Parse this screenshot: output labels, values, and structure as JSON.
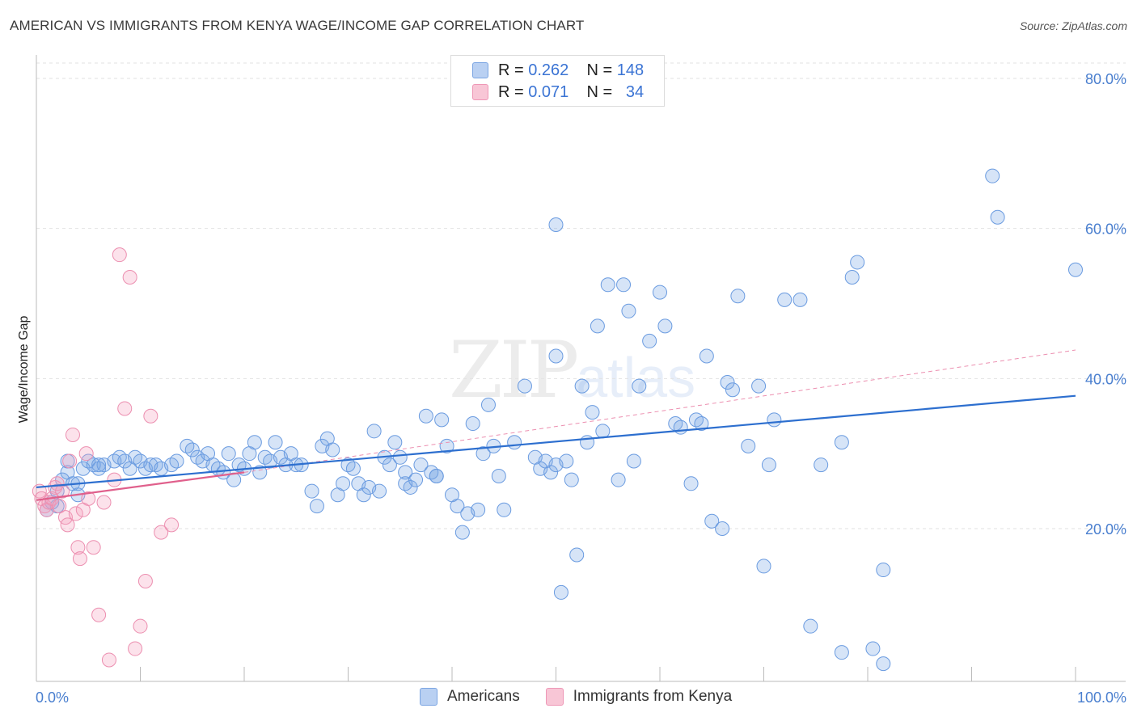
{
  "header": {
    "title": "AMERICAN VS IMMIGRANTS FROM KENYA WAGE/INCOME GAP CORRELATION CHART",
    "source": "Source: ZipAtlas.com"
  },
  "legend": {
    "rows": [
      {
        "r_label": "R =",
        "r_value": "0.262",
        "n_label": "N =",
        "n_value": "148"
      },
      {
        "r_label": "R =",
        "r_value": "0.071",
        "n_label": "N =",
        "n_value": "34"
      }
    ],
    "bottom": [
      "Americans",
      "Immigrants from Kenya"
    ]
  },
  "watermark": {
    "zip": "ZIP",
    "atlas": "atlas"
  },
  "colors": {
    "americans_fill": "rgba(120,165,230,0.30)",
    "americans_stroke": "#6a9be0",
    "americans_line": "#2d6fcf",
    "kenya_fill": "rgba(245,160,190,0.30)",
    "kenya_stroke": "#ec8fb0",
    "kenya_line": "#e0608c",
    "tick_text": "#4a7fcf",
    "grid": "#e2e2e2"
  },
  "chart_data": {
    "type": "scatter",
    "title": "AMERICAN VS IMMIGRANTS FROM KENYA WAGE/INCOME GAP CORRELATION CHART",
    "xlabel": "",
    "ylabel": "Wage/Income Gap",
    "xlim": [
      0,
      100
    ],
    "ylim": [
      0,
      85
    ],
    "x_tick_labels": [
      {
        "value": 0,
        "label": "0.0%"
      },
      {
        "value": 100,
        "label": "100.0%"
      }
    ],
    "x_minor_ticks": [
      0,
      10,
      20,
      30,
      40,
      50,
      60,
      70,
      80,
      90,
      100
    ],
    "y_ticks": [
      {
        "value": 20,
        "label": "20.0%"
      },
      {
        "value": 40,
        "label": "40.0%"
      },
      {
        "value": 60,
        "label": "60.0%"
      },
      {
        "value": 80,
        "label": "80.0%"
      }
    ],
    "grid": true,
    "legend_position": "top-center",
    "series": [
      {
        "name": "Americans",
        "R": 0.262,
        "N": 148,
        "trend": {
          "x": [
            0,
            100
          ],
          "y": [
            25.5,
            37.7
          ]
        },
        "points": [
          [
            1.0,
            22.5
          ],
          [
            1.5,
            23.5
          ],
          [
            2.0,
            25.0
          ],
          [
            2.5,
            26.5
          ],
          [
            3.0,
            27.5
          ],
          [
            3.5,
            26.0
          ],
          [
            4.0,
            24.5
          ],
          [
            4.5,
            28.0
          ],
          [
            5.0,
            29.0
          ],
          [
            5.5,
            28.5
          ],
          [
            6.0,
            28.0
          ],
          [
            6.5,
            28.5
          ],
          [
            7.5,
            29.0
          ],
          [
            8.0,
            29.5
          ],
          [
            8.5,
            29.0
          ],
          [
            9.0,
            28.0
          ],
          [
            9.5,
            29.5
          ],
          [
            10.0,
            29.0
          ],
          [
            10.5,
            28.0
          ],
          [
            11.0,
            28.5
          ],
          [
            11.5,
            28.5
          ],
          [
            12.0,
            28.0
          ],
          [
            13.0,
            28.5
          ],
          [
            13.5,
            29.0
          ],
          [
            14.5,
            31.0
          ],
          [
            15.0,
            30.5
          ],
          [
            15.5,
            29.5
          ],
          [
            16.0,
            29.0
          ],
          [
            16.5,
            30.0
          ],
          [
            17.0,
            28.5
          ],
          [
            17.5,
            28.0
          ],
          [
            18.0,
            27.5
          ],
          [
            18.5,
            30.0
          ],
          [
            19.0,
            26.5
          ],
          [
            19.5,
            28.5
          ],
          [
            20.0,
            28.0
          ],
          [
            20.5,
            30.0
          ],
          [
            21.0,
            31.5
          ],
          [
            21.5,
            27.5
          ],
          [
            22.0,
            29.5
          ],
          [
            22.5,
            29.0
          ],
          [
            23.0,
            31.5
          ],
          [
            23.5,
            29.5
          ],
          [
            24.0,
            28.5
          ],
          [
            24.5,
            30.0
          ],
          [
            25.0,
            28.5
          ],
          [
            25.5,
            28.5
          ],
          [
            26.5,
            25.0
          ],
          [
            27.0,
            23.0
          ],
          [
            27.5,
            31.0
          ],
          [
            28.0,
            32.0
          ],
          [
            28.5,
            30.5
          ],
          [
            29.0,
            24.5
          ],
          [
            29.5,
            26.0
          ],
          [
            30.0,
            28.5
          ],
          [
            30.5,
            28.0
          ],
          [
            31.0,
            26.0
          ],
          [
            31.5,
            24.5
          ],
          [
            32.0,
            25.5
          ],
          [
            32.5,
            33.0
          ],
          [
            33.0,
            25.0
          ],
          [
            33.5,
            29.5
          ],
          [
            34.0,
            28.5
          ],
          [
            34.5,
            31.5
          ],
          [
            35.0,
            29.5
          ],
          [
            35.5,
            27.5
          ],
          [
            35.5,
            26.0
          ],
          [
            36.0,
            25.5
          ],
          [
            36.5,
            26.5
          ],
          [
            37.0,
            28.5
          ],
          [
            37.5,
            35.0
          ],
          [
            38.0,
            27.5
          ],
          [
            38.5,
            27.0
          ],
          [
            38.5,
            27.0
          ],
          [
            39.0,
            34.5
          ],
          [
            39.5,
            31.0
          ],
          [
            40.0,
            24.5
          ],
          [
            40.5,
            23.0
          ],
          [
            41.0,
            19.5
          ],
          [
            41.5,
            22.0
          ],
          [
            42.0,
            34.0
          ],
          [
            42.5,
            22.5
          ],
          [
            43.0,
            30.0
          ],
          [
            43.5,
            36.5
          ],
          [
            44.0,
            31.0
          ],
          [
            44.5,
            27.0
          ],
          [
            45.0,
            22.5
          ],
          [
            46.0,
            31.5
          ],
          [
            47.0,
            39.0
          ],
          [
            48.0,
            29.5
          ],
          [
            48.5,
            28.0
          ],
          [
            49.0,
            29.0
          ],
          [
            49.5,
            27.5
          ],
          [
            50.0,
            28.5
          ],
          [
            50.5,
            11.5
          ],
          [
            51.0,
            29.0
          ],
          [
            51.5,
            26.5
          ],
          [
            52.0,
            16.5
          ],
          [
            52.5,
            39.0
          ],
          [
            53.0,
            31.5
          ],
          [
            53.5,
            35.5
          ],
          [
            54.0,
            47.0
          ],
          [
            54.5,
            33.0
          ],
          [
            55.0,
            52.5
          ],
          [
            56.0,
            26.5
          ],
          [
            56.5,
            52.5
          ],
          [
            57.0,
            49.0
          ],
          [
            57.5,
            29.0
          ],
          [
            58.0,
            39.0
          ],
          [
            59.0,
            45.0
          ],
          [
            60.0,
            51.5
          ],
          [
            60.5,
            47.0
          ],
          [
            61.5,
            34.0
          ],
          [
            62.0,
            33.5
          ],
          [
            63.0,
            26.0
          ],
          [
            63.5,
            34.5
          ],
          [
            64.0,
            34.0
          ],
          [
            64.5,
            43.0
          ],
          [
            65.0,
            21.0
          ],
          [
            66.0,
            20.0
          ],
          [
            66.5,
            39.5
          ],
          [
            67.0,
            38.5
          ],
          [
            67.5,
            51.0
          ],
          [
            68.5,
            31.0
          ],
          [
            69.5,
            39.0
          ],
          [
            70.0,
            15.0
          ],
          [
            70.5,
            28.5
          ],
          [
            71.0,
            34.5
          ],
          [
            72.0,
            50.5
          ],
          [
            73.5,
            50.5
          ],
          [
            74.5,
            7.0
          ],
          [
            75.5,
            28.5
          ],
          [
            77.5,
            3.5
          ],
          [
            77.5,
            31.5
          ],
          [
            78.5,
            53.5
          ],
          [
            79.0,
            55.5
          ],
          [
            80.5,
            4.0
          ],
          [
            81.5,
            2.0
          ],
          [
            81.5,
            14.5
          ],
          [
            92.0,
            67.0
          ],
          [
            92.5,
            61.5
          ],
          [
            100.0,
            54.5
          ],
          [
            50.0,
            60.5
          ],
          [
            50.0,
            43.0
          ],
          [
            3.0,
            29.0
          ],
          [
            4.0,
            26.0
          ],
          [
            2.0,
            23.0
          ],
          [
            6.0,
            28.5
          ]
        ]
      },
      {
        "name": "Immigrants from Kenya",
        "R": 0.071,
        "N": 34,
        "trend": {
          "x": [
            0,
            20
          ],
          "y": [
            23.8,
            27.5
          ]
        },
        "dashed_extension": {
          "x": [
            20,
            100
          ],
          "y": [
            27.5,
            43.8
          ]
        },
        "points": [
          [
            0.3,
            25.0
          ],
          [
            0.5,
            24.0
          ],
          [
            0.8,
            23.0
          ],
          [
            1.0,
            22.5
          ],
          [
            1.2,
            23.5
          ],
          [
            1.5,
            24.0
          ],
          [
            1.8,
            25.5
          ],
          [
            2.0,
            26.0
          ],
          [
            2.2,
            23.0
          ],
          [
            2.5,
            25.0
          ],
          [
            2.8,
            21.5
          ],
          [
            3.0,
            20.5
          ],
          [
            3.2,
            29.0
          ],
          [
            3.5,
            32.5
          ],
          [
            3.8,
            22.0
          ],
          [
            4.0,
            17.5
          ],
          [
            4.2,
            16.0
          ],
          [
            4.5,
            22.5
          ],
          [
            4.8,
            30.0
          ],
          [
            5.0,
            24.0
          ],
          [
            5.5,
            17.5
          ],
          [
            6.0,
            8.5
          ],
          [
            6.5,
            23.5
          ],
          [
            7.0,
            2.5
          ],
          [
            7.5,
            26.5
          ],
          [
            8.0,
            56.5
          ],
          [
            8.5,
            36.0
          ],
          [
            9.0,
            53.5
          ],
          [
            9.5,
            4.0
          ],
          [
            10.0,
            7.0
          ],
          [
            10.5,
            13.0
          ],
          [
            11.0,
            35.0
          ],
          [
            12.0,
            19.5
          ],
          [
            13.0,
            20.5
          ]
        ]
      }
    ]
  }
}
